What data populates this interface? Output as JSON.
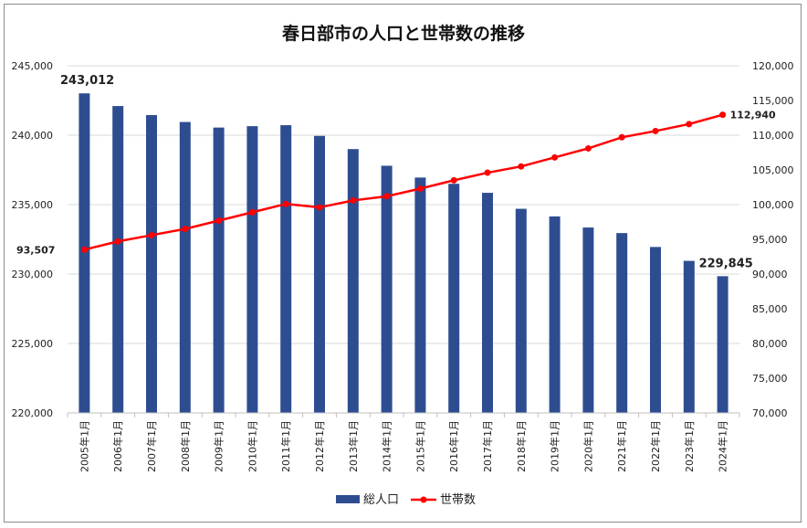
{
  "chart_data": {
    "type": "bar",
    "title": "春日部市の人口と世帯数の推移",
    "categories": [
      "2005年1月",
      "2006年1月",
      "2007年1月",
      "2008年1月",
      "2009年1月",
      "2010年1月",
      "2011年1月",
      "2012年1月",
      "2013年1月",
      "2014年1月",
      "2015年1月",
      "2016年1月",
      "2017年1月",
      "2018年1月",
      "2019年1月",
      "2020年1月",
      "2021年1月",
      "2022年1月",
      "2023年1月",
      "2024年1月"
    ],
    "series": [
      {
        "name": "総人口",
        "type": "bar",
        "axis": "left",
        "color": "#2e4d91",
        "values": [
          243012,
          242100,
          241450,
          240950,
          240550,
          240650,
          240720,
          239950,
          239000,
          237800,
          236950,
          236500,
          235850,
          234700,
          234150,
          233350,
          232950,
          231950,
          230950,
          229845
        ]
      },
      {
        "name": "世帯数",
        "type": "line",
        "axis": "right",
        "color": "#ff0000",
        "values": [
          93507,
          94700,
          95600,
          96500,
          97700,
          98900,
          100100,
          99600,
          100600,
          101200,
          102300,
          103500,
          104600,
          105500,
          106800,
          108100,
          109700,
          110600,
          111600,
          112940
        ]
      }
    ],
    "y_left": {
      "min": 220000,
      "max": 245000,
      "step": 5000,
      "ticks": [
        "220,000",
        "225,000",
        "230,000",
        "235,000",
        "240,000",
        "245,000"
      ]
    },
    "y_right": {
      "min": 70000,
      "max": 120000,
      "step": 5000,
      "ticks": [
        "70,000",
        "75,000",
        "80,000",
        "85,000",
        "90,000",
        "95,000",
        "100,000",
        "105,000",
        "110,000",
        "115,000",
        "120,000"
      ]
    },
    "data_labels": {
      "population_first": "243,012",
      "population_last": "229,845",
      "households_first": "93,507",
      "households_last": "112,940"
    },
    "legend": {
      "position": "bottom",
      "items": [
        "総人口",
        "世帯数"
      ]
    },
    "grid": true
  }
}
